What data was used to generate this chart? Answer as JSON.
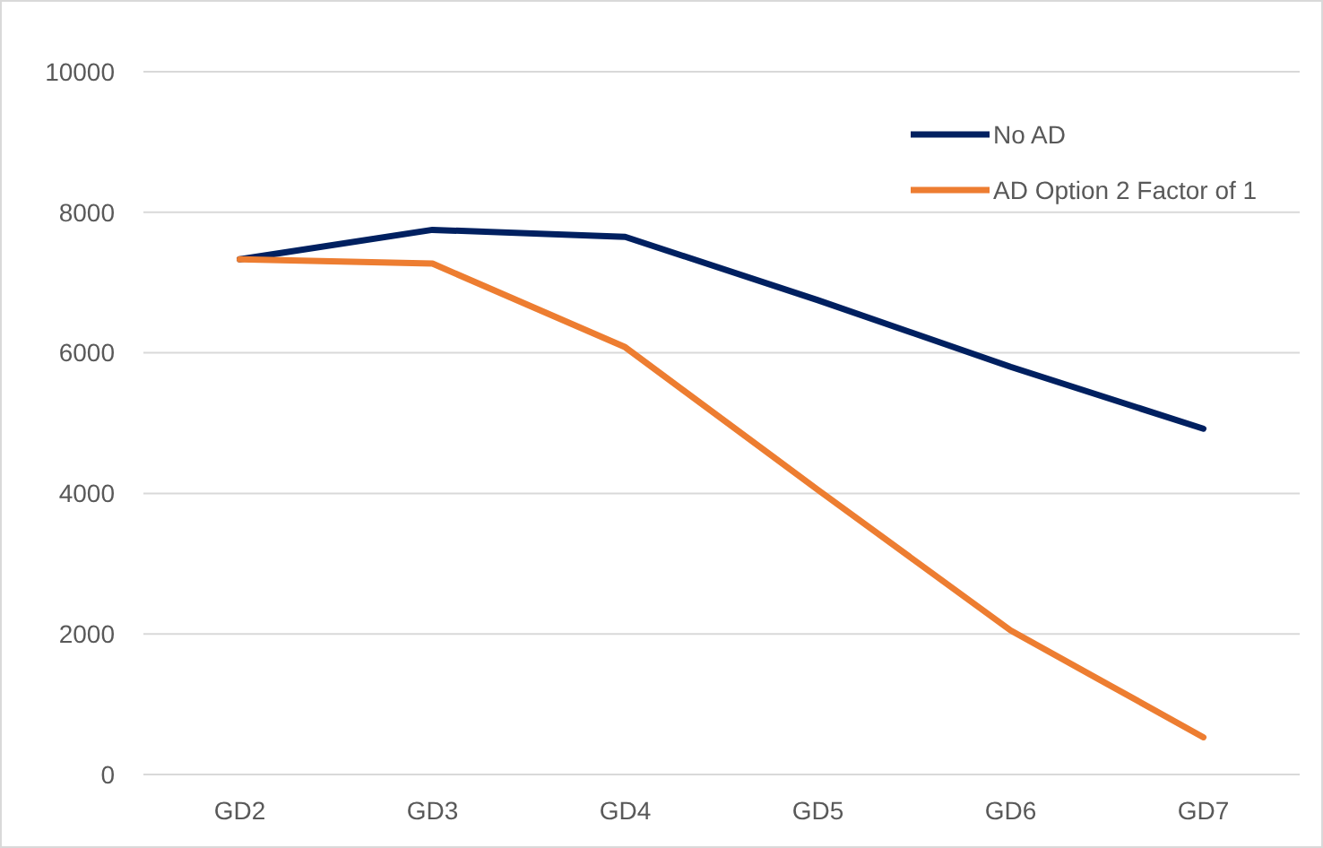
{
  "chart_data": {
    "type": "line",
    "categories": [
      "GD2",
      "GD3",
      "GD4",
      "GD5",
      "GD6",
      "GD7"
    ],
    "series": [
      {
        "name": "No AD",
        "color": "#002060",
        "values": [
          7330,
          7750,
          7650,
          6750,
          5800,
          4920
        ]
      },
      {
        "name": "AD Option 2 Factor of 1",
        "color": "#ed7d31",
        "values": [
          7330,
          7270,
          6080,
          4050,
          2050,
          530
        ]
      }
    ],
    "ylim": [
      0,
      10000
    ],
    "yticks": [
      0,
      2000,
      4000,
      6000,
      8000,
      10000
    ],
    "grid": "y",
    "legend": "top right",
    "marker": "none",
    "line_style": "solid"
  }
}
